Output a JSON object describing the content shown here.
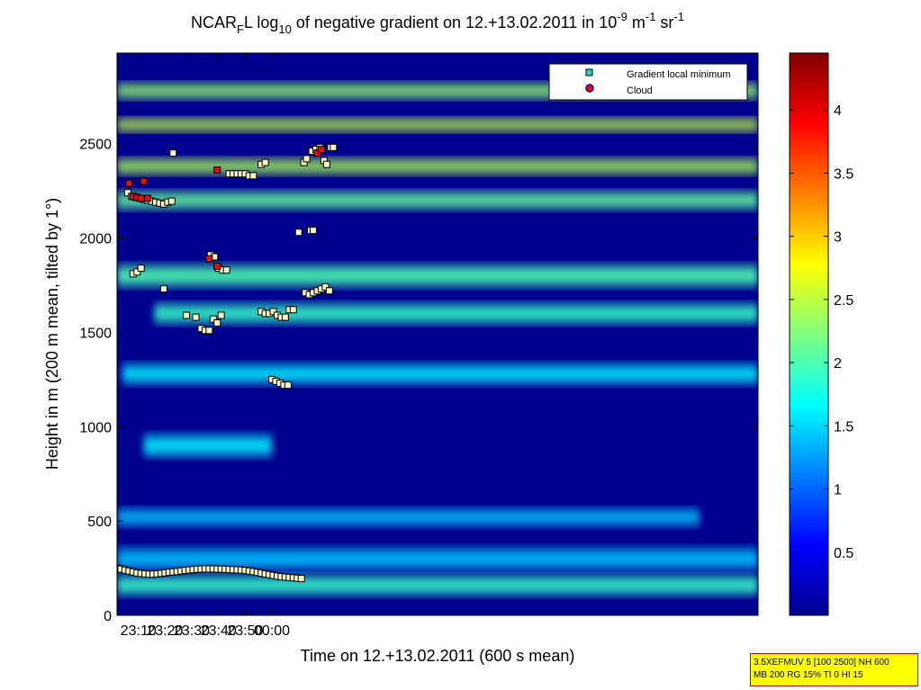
{
  "chart_data": {
    "type": "heatmap",
    "title": {
      "prefix": "NCAR",
      "prefix_sub": "F",
      "middle": "L log",
      "log_sub": "10",
      "main": " of negative gradient on 12.+13.02.2011 in 10",
      "unit_exp1": "-9",
      "unit_mid": " m",
      "unit_exp2": "-1",
      "unit_sr": " sr",
      "unit_exp3": "-1"
    },
    "xlabel": "Time on 12.+13.02.2011 (600 s mean)",
    "ylabel": "Height in m (200 m mean, tilted by 1°)",
    "xlim_minutes": [
      1382,
      1622
    ],
    "ylim": [
      0,
      2980
    ],
    "x_ticks": [
      {
        "t": 1390,
        "label": "23:10"
      },
      {
        "t": 1400,
        "label": "23:20"
      },
      {
        "t": 1410,
        "label": "23:30"
      },
      {
        "t": 1420,
        "label": "23:40"
      },
      {
        "t": 1430,
        "label": "23:50"
      },
      {
        "t": 1440,
        "label": "00:00"
      }
    ],
    "y_ticks": [
      0,
      500,
      1000,
      1500,
      2000,
      2500
    ],
    "colorbar": {
      "range": [
        0,
        4.45
      ],
      "ticks": [
        0.5,
        1,
        1.5,
        2,
        2.5,
        3,
        3.5,
        4
      ],
      "colormap": "jet"
    },
    "layers": [
      {
        "h": 300,
        "thick": 100,
        "value": 1.4,
        "from": 1382,
        "to": 1622
      },
      {
        "h": 160,
        "thick": 90,
        "value": 1.9,
        "from": 1382,
        "to": 1622
      },
      {
        "h": 520,
        "thick": 80,
        "value": 1.4,
        "from": 1382,
        "to": 1600
      },
      {
        "h": 900,
        "thick": 100,
        "value": 1.6,
        "from": 1392,
        "to": 1440
      },
      {
        "h": 1280,
        "thick": 90,
        "value": 1.6,
        "from": 1384,
        "to": 1622
      },
      {
        "h": 1600,
        "thick": 90,
        "value": 1.9,
        "from": 1396,
        "to": 1622
      },
      {
        "h": 1800,
        "thick": 100,
        "value": 2.0,
        "from": 1382,
        "to": 1622
      },
      {
        "h": 2200,
        "thick": 80,
        "value": 2.1,
        "from": 1382,
        "to": 1622
      },
      {
        "h": 2380,
        "thick": 70,
        "value": 2.4,
        "from": 1382,
        "to": 1622
      },
      {
        "h": 2600,
        "thick": 60,
        "value": 2.5,
        "from": 1382,
        "to": 1622
      },
      {
        "h": 2780,
        "thick": 70,
        "value": 2.3,
        "from": 1382,
        "to": 1622
      }
    ],
    "series": [
      {
        "name": "Gradient local minimum",
        "marker": "square",
        "points": [
          [
            1382.2,
            250
          ],
          [
            1383.5,
            245
          ],
          [
            1385,
            240
          ],
          [
            1386.5,
            235
          ],
          [
            1388,
            230
          ],
          [
            1389.5,
            225
          ],
          [
            1391,
            222
          ],
          [
            1392.5,
            220
          ],
          [
            1394,
            218
          ],
          [
            1395.5,
            218
          ],
          [
            1397,
            220
          ],
          [
            1398.5,
            222
          ],
          [
            1400,
            225
          ],
          [
            1401.5,
            228
          ],
          [
            1403,
            230
          ],
          [
            1404.5,
            232
          ],
          [
            1406,
            235
          ],
          [
            1407.5,
            238
          ],
          [
            1409,
            240
          ],
          [
            1410.5,
            242
          ],
          [
            1412,
            244
          ],
          [
            1413.5,
            245
          ],
          [
            1415,
            246
          ],
          [
            1416.5,
            246
          ],
          [
            1418,
            246
          ],
          [
            1419.5,
            245
          ],
          [
            1421,
            245
          ],
          [
            1422.5,
            244
          ],
          [
            1424,
            243
          ],
          [
            1425.5,
            242
          ],
          [
            1427,
            241
          ],
          [
            1428.5,
            240
          ],
          [
            1430,
            238
          ],
          [
            1431.5,
            235
          ],
          [
            1433,
            232
          ],
          [
            1434.5,
            228
          ],
          [
            1436,
            224
          ],
          [
            1437.5,
            220
          ],
          [
            1439,
            216
          ],
          [
            1440.5,
            212
          ],
          [
            1442,
            208
          ],
          [
            1443.5,
            205
          ],
          [
            1445,
            203
          ],
          [
            1446.5,
            201
          ],
          [
            1448,
            199
          ],
          [
            1449.5,
            197
          ],
          [
            1451,
            195
          ],
          [
            1386,
            2240
          ],
          [
            1387.5,
            2220
          ],
          [
            1389,
            2215
          ],
          [
            1390.5,
            2210
          ],
          [
            1392,
            2205
          ],
          [
            1393.5,
            2200
          ],
          [
            1395,
            2195
          ],
          [
            1396.5,
            2190
          ],
          [
            1398,
            2185
          ],
          [
            1399.5,
            2180
          ],
          [
            1401,
            2190
          ],
          [
            1402.5,
            2195
          ],
          [
            1388,
            1810
          ],
          [
            1389.5,
            1820
          ],
          [
            1391,
            1840
          ],
          [
            1399.5,
            1730
          ],
          [
            1403,
            2450
          ],
          [
            1408,
            1590
          ],
          [
            1411.5,
            1580
          ],
          [
            1413.5,
            1520
          ],
          [
            1415,
            1510
          ],
          [
            1416.5,
            1510
          ],
          [
            1418,
            1570
          ],
          [
            1419.5,
            1550
          ],
          [
            1421,
            1590
          ],
          [
            1417,
            1910
          ],
          [
            1418.5,
            1900
          ],
          [
            1420,
            1840
          ],
          [
            1421.5,
            1830
          ],
          [
            1423,
            1830
          ],
          [
            1424,
            2340
          ],
          [
            1425.5,
            2340
          ],
          [
            1427,
            2340
          ],
          [
            1428.5,
            2340
          ],
          [
            1430,
            2340
          ],
          [
            1431.5,
            2330
          ],
          [
            1433,
            2330
          ],
          [
            1436,
            2390
          ],
          [
            1437.5,
            2400
          ],
          [
            1436,
            1610
          ],
          [
            1437.5,
            1600
          ],
          [
            1439,
            1600
          ],
          [
            1440.5,
            1610
          ],
          [
            1442,
            1590
          ],
          [
            1443.5,
            1580
          ],
          [
            1445,
            1580
          ],
          [
            1440,
            1250
          ],
          [
            1441.5,
            1240
          ],
          [
            1443,
            1230
          ],
          [
            1444.5,
            1220
          ],
          [
            1446,
            1220
          ],
          [
            1446.5,
            1620
          ],
          [
            1448,
            1620
          ],
          [
            1450,
            2030
          ],
          [
            1452,
            2400
          ],
          [
            1453,
            2420
          ],
          [
            1454.5,
            2040
          ],
          [
            1455.5,
            2040
          ],
          [
            1452.5,
            1710
          ],
          [
            1454,
            1700
          ],
          [
            1455.5,
            1710
          ],
          [
            1457,
            1720
          ],
          [
            1458.5,
            1730
          ],
          [
            1460,
            1740
          ],
          [
            1461.5,
            1720
          ],
          [
            1455,
            2460
          ],
          [
            1456.5,
            2470
          ],
          [
            1458,
            2480
          ],
          [
            1459.5,
            2410
          ],
          [
            1460.5,
            2390
          ],
          [
            1462,
            2480
          ],
          [
            1463,
            2480
          ]
        ]
      },
      {
        "name": "Cloud",
        "marker": "red-dot",
        "points": [
          [
            1386.5,
            2290
          ],
          [
            1388,
            2220
          ],
          [
            1389.5,
            2215
          ],
          [
            1391,
            2210
          ],
          [
            1392,
            2300
          ],
          [
            1393.5,
            2210
          ],
          [
            1416.5,
            1890
          ],
          [
            1419.5,
            1850
          ],
          [
            1419.5,
            2360
          ],
          [
            1457,
            2450
          ],
          [
            1458.5,
            2470
          ]
        ]
      }
    ],
    "legend_position": "top-right"
  },
  "info_box": {
    "line1": "3.5XEFMUV 5 [100 2500] NH 600",
    "line2": "MB 200 RG 15% TI 0 HI 15"
  }
}
